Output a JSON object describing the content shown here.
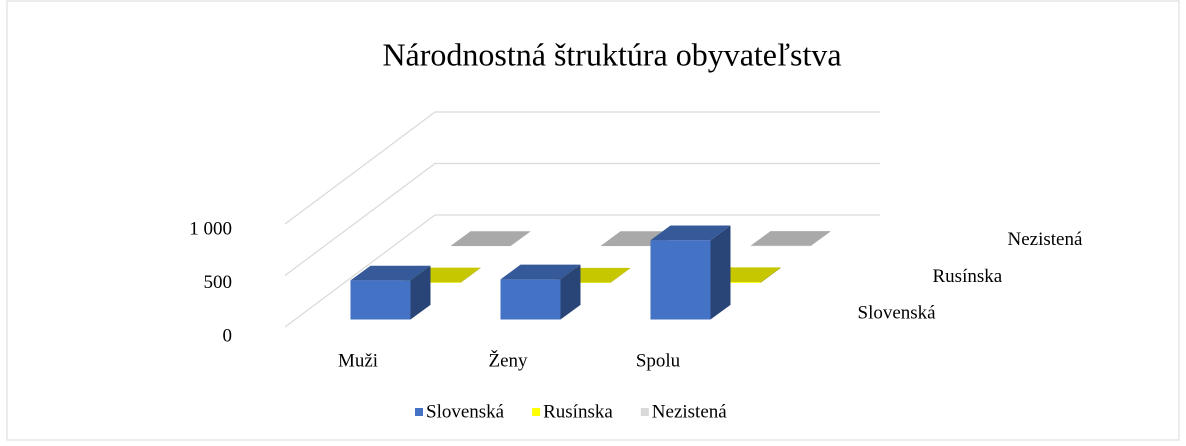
{
  "chart_data": {
    "type": "bar3d",
    "title": "Národnostná štruktúra obyvateľstva",
    "categories": [
      "Muži",
      "Ženy",
      "Spolu"
    ],
    "series": [
      {
        "name": "Slovenská",
        "color": "#4472c4",
        "values": [
          380,
          390,
          770
        ]
      },
      {
        "name": "Rusínska",
        "color": "#ffff00",
        "values": [
          5,
          3,
          8
        ]
      },
      {
        "name": "Nezistená",
        "color": "#d9d9d9",
        "values": [
          2,
          2,
          4
        ]
      }
    ],
    "ylim": [
      0,
      1000
    ],
    "yticks": [
      0,
      500,
      {
        "value": 1000,
        "label": "1 000"
      }
    ],
    "grid": true,
    "legend": "bottom"
  }
}
